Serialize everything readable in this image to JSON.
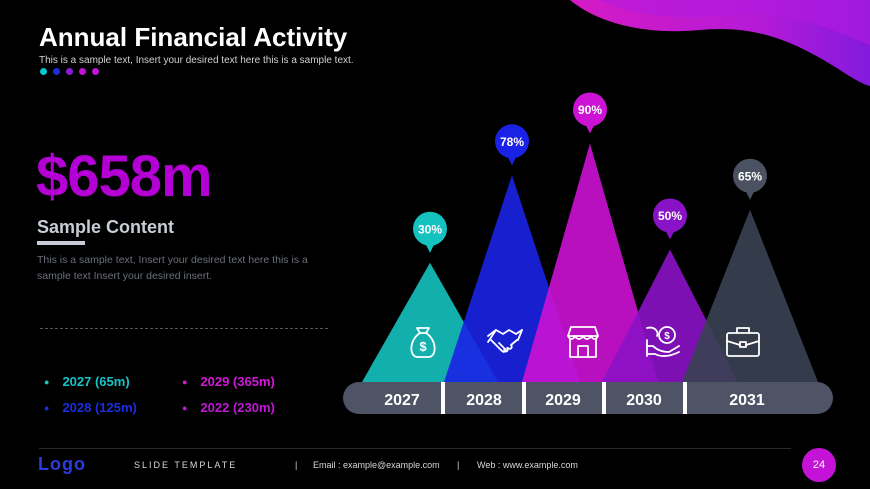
{
  "header": {
    "title": "Annual Financial Activity",
    "subtitle": "This is a sample text, Insert your desired text here this is a sample text.",
    "dot_colors": [
      "#00c8d0",
      "#1a2ee0",
      "#8a1ad8",
      "#c014d6",
      "#c014d6"
    ]
  },
  "highlight": {
    "amount": "$658m",
    "heading": "Sample Content",
    "body": "This is a sample text, Insert your desired text here this is a sample text Insert your desired insert."
  },
  "legend": [
    {
      "label": "2027 (65m)",
      "color": "#17c3c8"
    },
    {
      "label": "2028 (125m)",
      "color": "#1a2ee0"
    },
    {
      "label": "2029 (365m)",
      "color": "#d21ad8"
    },
    {
      "label": "2022 (230m)",
      "color": "#c018d4"
    }
  ],
  "chart_data": {
    "type": "bar",
    "categories": [
      "2027",
      "2028",
      "2029",
      "2030",
      "2031"
    ],
    "values": [
      30,
      78,
      90,
      50,
      65
    ],
    "value_labels": [
      "30%",
      "78%",
      "90%",
      "50%",
      "65%"
    ],
    "ylim": [
      0,
      100
    ],
    "icons": [
      "money-bag-icon",
      "handshake-icon",
      "store-icon",
      "hand-dollar-icon",
      "briefcase-icon"
    ],
    "colors": [
      "#15c2c0",
      "#1a22e6",
      "#cc12d4",
      "#8a12c6",
      "#3a4152"
    ],
    "bubble_colors": [
      "#15c2c0",
      "#1a22e6",
      "#cc12d4",
      "#8a12c6",
      "#4a5262"
    ]
  },
  "footer": {
    "logo": "Logo",
    "template": "SLIDE TEMPLATE",
    "sep": "|",
    "email": "Email : example@example.com",
    "web": "Web : www.example.com",
    "page": "24"
  }
}
